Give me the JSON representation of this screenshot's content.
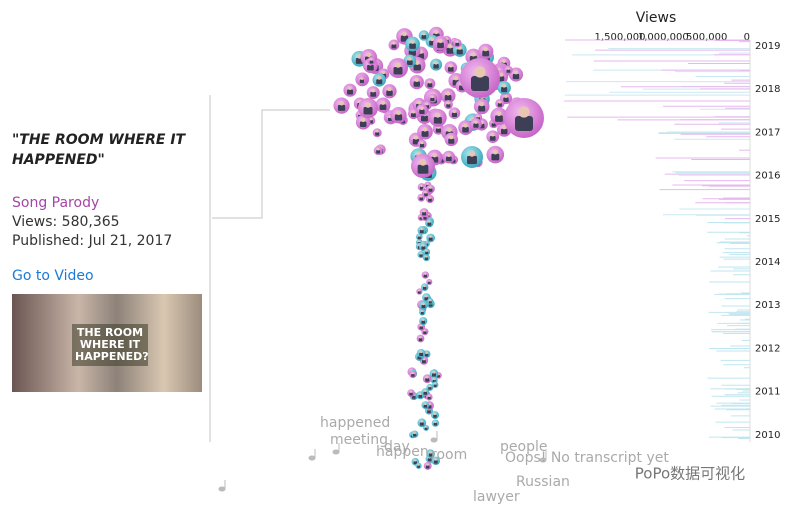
{
  "detail": {
    "title": "\"THE ROOM WHERE IT HAPPENED\"",
    "category": "Song Parody",
    "views": "Views: 580,365",
    "published": "Published: Jul 21, 2017",
    "link": "Go to Video",
    "thumbnail_text": "THE ROOM WHERE IT HAPPENED?"
  },
  "views_axis": {
    "title": "Views",
    "ticks": [
      {
        "value": 1500000,
        "label": "1,500,000"
      },
      {
        "value": 1000000,
        "label": "1,000,000"
      },
      {
        "value": 500000,
        "label": "500,000"
      },
      0
    ]
  },
  "years": [
    2019,
    2018,
    2017,
    2016,
    2015,
    2014,
    2013,
    2012,
    2011,
    2010
  ],
  "words": [
    "happened",
    "meeting",
    "day",
    "happen",
    "room",
    "people",
    "Oops! No transcript yet",
    "Russian",
    "lawyer"
  ],
  "watermark": "PoPo数据可视化"
}
